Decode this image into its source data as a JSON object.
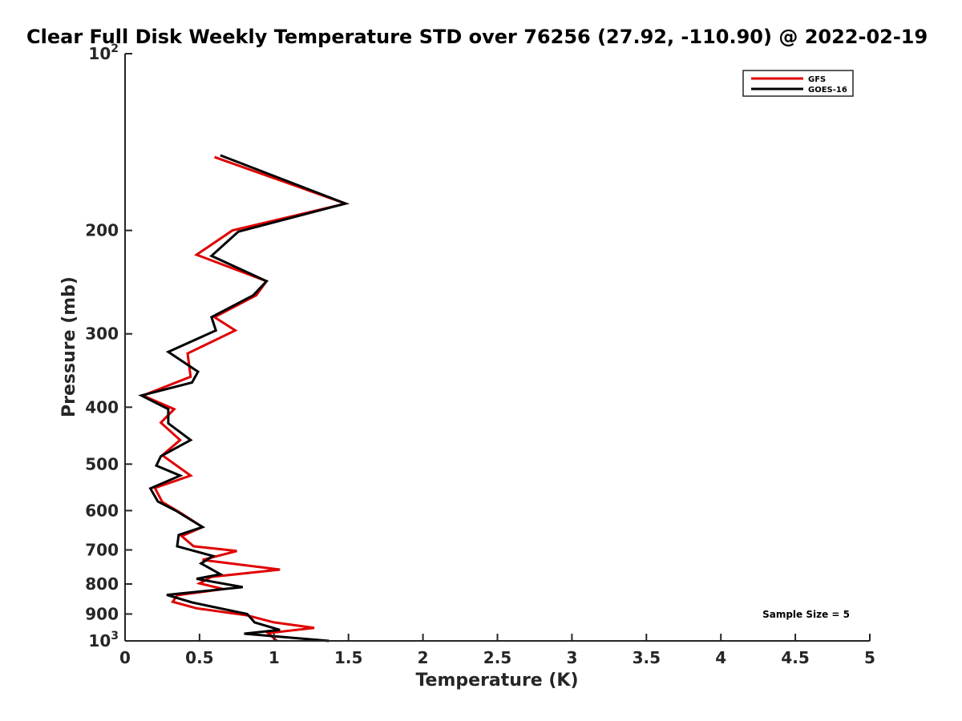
{
  "chart_data": {
    "type": "line",
    "title": "Clear Full Disk Weekly Temperature STD over 76256 (27.92, -110.90) @ 2022-02-19",
    "xlabel": "Temperature (K)",
    "ylabel": "Pressure (mb)",
    "xlim": [
      0,
      5
    ],
    "ylim": [
      100,
      1000
    ],
    "yscale": "log",
    "y_reversed": true,
    "grid": false,
    "legend_position": "top-right",
    "xticks": [
      {
        "value": 0,
        "label": "0"
      },
      {
        "value": 0.5,
        "label": "0.5"
      },
      {
        "value": 1,
        "label": "1"
      },
      {
        "value": 1.5,
        "label": "1.5"
      },
      {
        "value": 2,
        "label": "2"
      },
      {
        "value": 2.5,
        "label": "2.5"
      },
      {
        "value": 3,
        "label": "3"
      },
      {
        "value": 3.5,
        "label": "3.5"
      },
      {
        "value": 4,
        "label": "4"
      },
      {
        "value": 4.5,
        "label": "4.5"
      },
      {
        "value": 5,
        "label": "5"
      }
    ],
    "yticks": [
      {
        "value": 100,
        "base": "10",
        "exp": "2"
      },
      {
        "value": 200,
        "label": "200"
      },
      {
        "value": 300,
        "label": "300"
      },
      {
        "value": 400,
        "label": "400"
      },
      {
        "value": 500,
        "label": "500"
      },
      {
        "value": 600,
        "label": "600"
      },
      {
        "value": 700,
        "label": "700"
      },
      {
        "value": 800,
        "label": "800"
      },
      {
        "value": 900,
        "label": "900"
      },
      {
        "value": 1000,
        "base": "10",
        "exp": "3"
      }
    ],
    "series": [
      {
        "name": "GFS",
        "color": "#e00000",
        "points": [
          [
            0.6,
            150
          ],
          [
            1.48,
            180
          ],
          [
            0.72,
            200
          ],
          [
            0.48,
            220
          ],
          [
            0.95,
            244
          ],
          [
            0.88,
            258
          ],
          [
            0.6,
            281
          ],
          [
            0.74,
            296
          ],
          [
            0.42,
            324
          ],
          [
            0.44,
            355
          ],
          [
            0.12,
            382
          ],
          [
            0.33,
            403
          ],
          [
            0.24,
            425
          ],
          [
            0.37,
            455
          ],
          [
            0.25,
            483
          ],
          [
            0.44,
            523
          ],
          [
            0.2,
            549
          ],
          [
            0.25,
            580
          ],
          [
            0.38,
            607
          ],
          [
            0.52,
            640
          ],
          [
            0.38,
            663
          ],
          [
            0.46,
            690
          ],
          [
            0.75,
            703
          ],
          [
            0.52,
            728
          ],
          [
            1.04,
            756
          ],
          [
            0.58,
            778
          ],
          [
            0.5,
            798
          ],
          [
            0.66,
            816
          ],
          [
            0.35,
            836
          ],
          [
            0.32,
            858
          ],
          [
            0.48,
            880
          ],
          [
            0.82,
            905
          ],
          [
            1.0,
            930
          ],
          [
            1.27,
            950
          ],
          [
            0.96,
            970
          ],
          [
            1.02,
            1000
          ]
        ]
      },
      {
        "name": "GOES-16",
        "color": "#000000",
        "points": [
          [
            0.64,
            149
          ],
          [
            1.48,
            180
          ],
          [
            0.76,
            201
          ],
          [
            0.58,
            221
          ],
          [
            0.95,
            244
          ],
          [
            0.86,
            258
          ],
          [
            0.58,
            281
          ],
          [
            0.61,
            296
          ],
          [
            0.29,
            322
          ],
          [
            0.49,
            348
          ],
          [
            0.45,
            363
          ],
          [
            0.11,
            382
          ],
          [
            0.29,
            403
          ],
          [
            0.29,
            426
          ],
          [
            0.44,
            455
          ],
          [
            0.24,
            485
          ],
          [
            0.21,
            503
          ],
          [
            0.37,
            523
          ],
          [
            0.17,
            550
          ],
          [
            0.22,
            579
          ],
          [
            0.34,
            600
          ],
          [
            0.52,
            640
          ],
          [
            0.36,
            660
          ],
          [
            0.35,
            690
          ],
          [
            0.59,
            717
          ],
          [
            0.51,
            738
          ],
          [
            0.64,
            770
          ],
          [
            0.48,
            784
          ],
          [
            0.79,
            810
          ],
          [
            0.28,
            835
          ],
          [
            0.45,
            860
          ],
          [
            0.82,
            900
          ],
          [
            0.87,
            930
          ],
          [
            1.04,
            958
          ],
          [
            0.8,
            972
          ],
          [
            1.37,
            1000
          ]
        ]
      }
    ],
    "annotation": "Sample Size = 5"
  }
}
